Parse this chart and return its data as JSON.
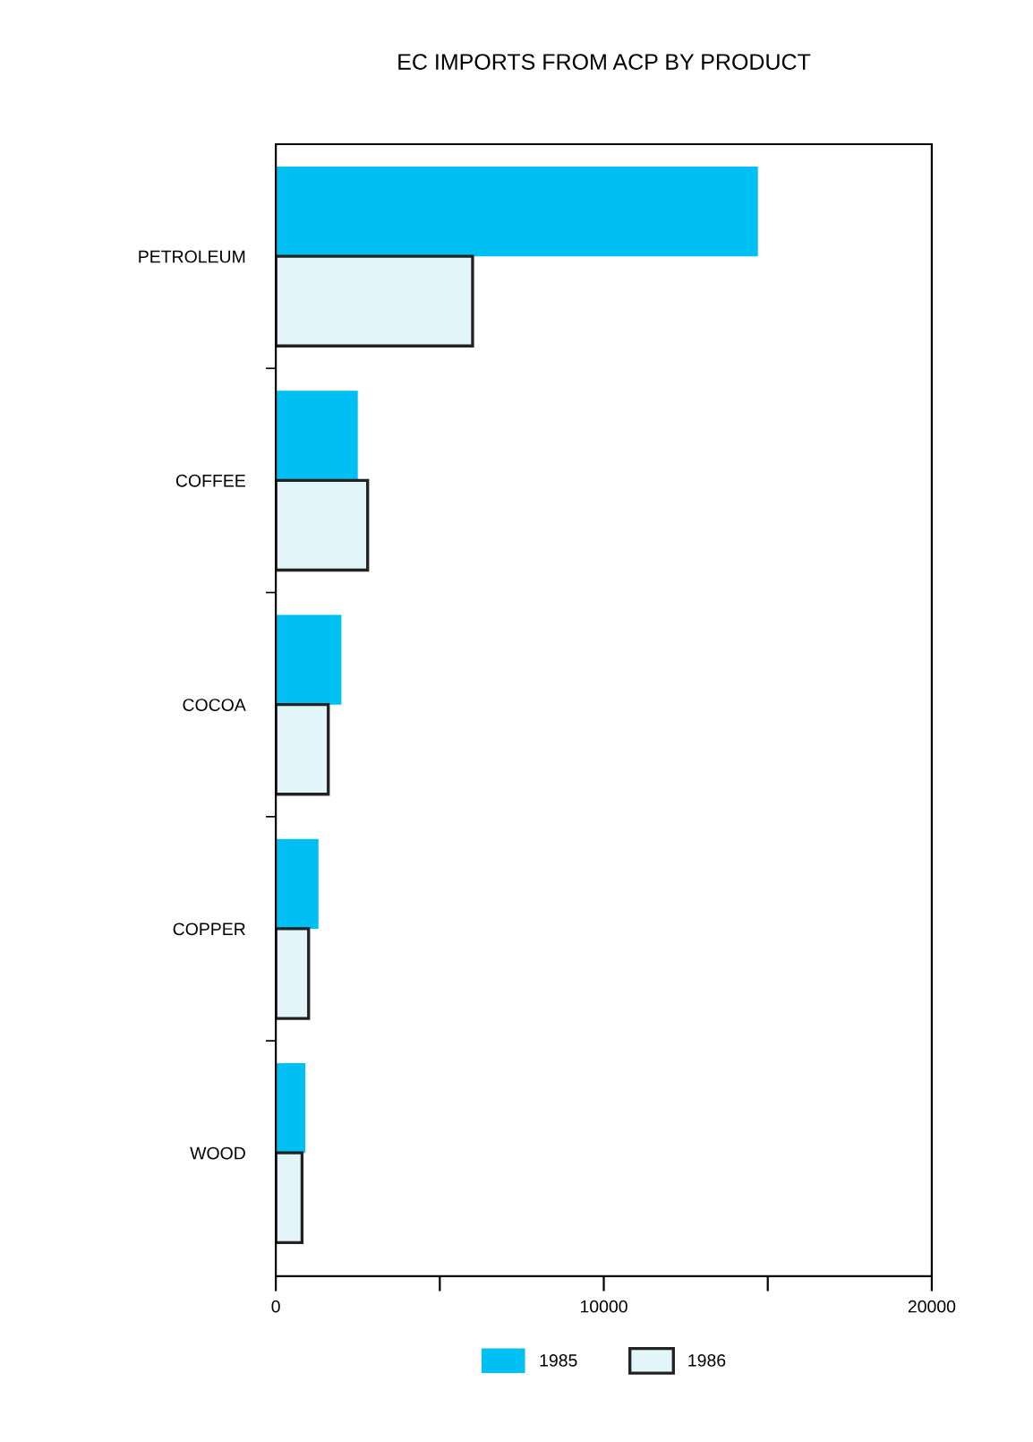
{
  "chart_data": {
    "type": "bar",
    "orientation": "horizontal",
    "title": "EC IMPORTS FROM ACP BY PRODUCT",
    "categories": [
      "PETROLEUM",
      "COFFEE",
      "COCOA",
      "COPPER",
      "WOOD"
    ],
    "series": [
      {
        "name": "1985",
        "color": "#00bff3",
        "values": [
          14700,
          2500,
          2000,
          1300,
          900
        ]
      },
      {
        "name": "1986",
        "color": "#e2f5f8",
        "values": [
          6000,
          2800,
          1600,
          1000,
          800
        ]
      }
    ],
    "xlim": [
      0,
      20000
    ],
    "xticks": [
      0,
      {
        "value": 5000,
        "label": null
      },
      10000,
      {
        "value": 15000,
        "label": null
      },
      20000
    ],
    "grid": false,
    "legend": "bottom"
  }
}
